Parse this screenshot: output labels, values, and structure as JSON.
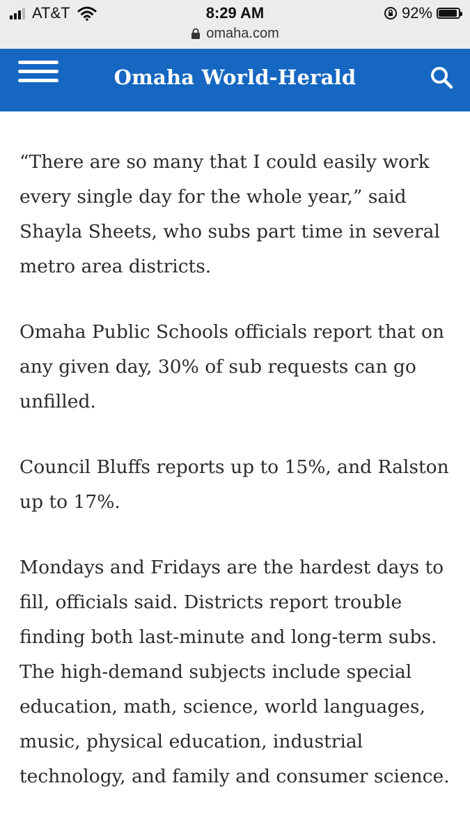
{
  "status_bar": {
    "carrier": "AT&T",
    "time": "8:29 AM",
    "battery_percent": "92%",
    "battery_level": 0.92,
    "url": "omaha.com"
  },
  "header": {
    "masthead": "Omaha World-Herald",
    "background_color": "#1567c2"
  },
  "article": {
    "paragraphs": [
      "“There are so many that I could easily work every single day for the whole year,” said Shayla Sheets, who subs part time in several metro area districts.",
      "Omaha Public Schools officials report that on any given day, 30% of sub requests can go unfilled.",
      "Council Bluffs reports up to 15%, and Ralston up to 17%.",
      "Mondays and Fridays are the hardest days to fill, officials said. Districts report trouble finding both last-minute and long-term subs. The high-demand subjects include special education, math, science, world languages, music, physical education, industrial technology, and family and consumer science."
    ]
  },
  "icons": {
    "menu": "hamburger-menu-icon",
    "search": "search-icon",
    "padlock": "padlock-icon",
    "wifi": "wifi-icon",
    "orientation_lock": "orientation-lock-icon",
    "battery": "battery-icon",
    "signal": "signal-icon"
  }
}
